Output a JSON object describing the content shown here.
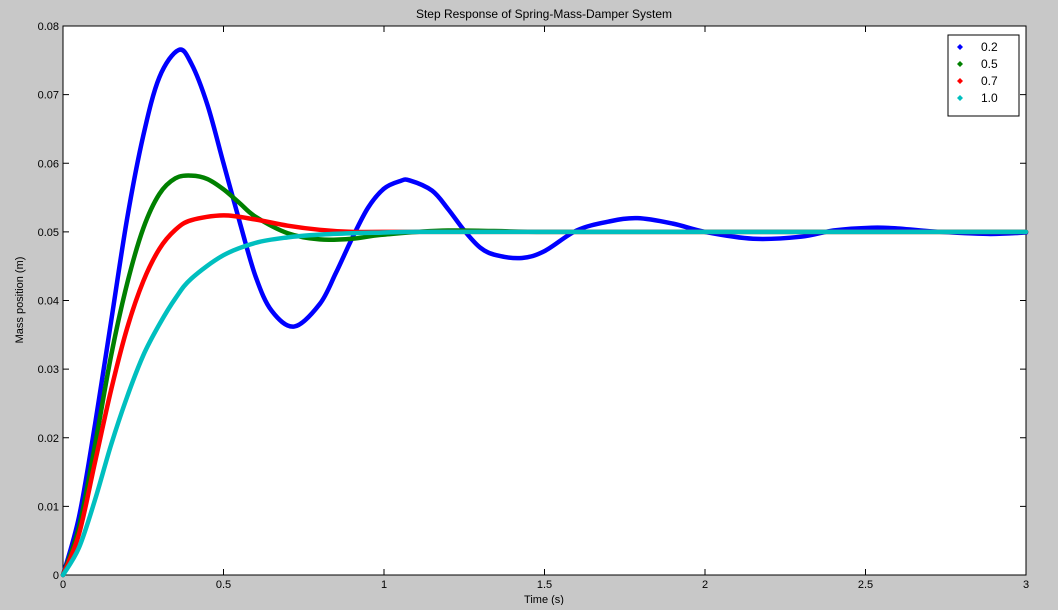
{
  "chart_data": {
    "type": "line",
    "title": "Step Response of Spring-Mass-Damper System",
    "xlabel": "Time (s)",
    "ylabel": "Mass position (m)",
    "xlim": [
      0,
      3
    ],
    "ylim": [
      0,
      0.08
    ],
    "grid": false,
    "legend_position": "top-right",
    "marker": "dot",
    "xticks": [
      0,
      0.5,
      1,
      1.5,
      2,
      2.5,
      3
    ],
    "xtick_labels": [
      "0",
      "0.5",
      "1",
      "1.5",
      "2",
      "2.5",
      "3"
    ],
    "yticks": [
      0,
      0.01,
      0.02,
      0.03,
      0.04,
      0.05,
      0.06,
      0.07,
      0.08
    ],
    "ytick_labels": [
      "0",
      "0.01",
      "0.02",
      "0.03",
      "0.04",
      "0.05",
      "0.06",
      "0.07",
      "0.08"
    ],
    "series": [
      {
        "name": "0.2",
        "color": "#0000ff",
        "x": [
          0,
          0.05,
          0.1,
          0.15,
          0.2,
          0.25,
          0.3,
          0.36,
          0.4,
          0.45,
          0.5,
          0.55,
          0.6,
          0.65,
          0.72,
          0.8,
          0.85,
          0.9,
          0.95,
          1.0,
          1.05,
          1.08,
          1.15,
          1.2,
          1.25,
          1.3,
          1.35,
          1.43,
          1.5,
          1.6,
          1.7,
          1.79,
          1.9,
          2.0,
          2.15,
          2.3,
          2.4,
          2.52,
          2.6,
          2.7,
          2.88,
          3.0
        ],
        "y": [
          0,
          0.0085,
          0.022,
          0.037,
          0.052,
          0.064,
          0.0725,
          0.0765,
          0.0745,
          0.0685,
          0.06,
          0.0515,
          0.0435,
          0.0385,
          0.0362,
          0.0395,
          0.044,
          0.049,
          0.0535,
          0.0563,
          0.0574,
          0.0575,
          0.056,
          0.0533,
          0.0502,
          0.0477,
          0.0466,
          0.0462,
          0.0472,
          0.0502,
          0.0515,
          0.052,
          0.0512,
          0.05,
          0.049,
          0.0493,
          0.0502,
          0.0506,
          0.0505,
          0.0501,
          0.0497,
          0.0499
        ]
      },
      {
        "name": "0.5",
        "color": "#008000",
        "x": [
          0,
          0.05,
          0.1,
          0.15,
          0.2,
          0.25,
          0.3,
          0.35,
          0.4,
          0.45,
          0.5,
          0.55,
          0.6,
          0.7,
          0.8,
          0.9,
          1.0,
          1.2,
          1.5,
          2.0,
          2.5,
          3.0
        ],
        "y": [
          0,
          0.007,
          0.019,
          0.032,
          0.0425,
          0.0505,
          0.0555,
          0.0578,
          0.0582,
          0.0577,
          0.0562,
          0.0542,
          0.0522,
          0.0498,
          0.0489,
          0.049,
          0.0496,
          0.0502,
          0.05,
          0.05,
          0.05,
          0.05
        ]
      },
      {
        "name": "0.7",
        "color": "#ff0000",
        "x": [
          0,
          0.05,
          0.1,
          0.15,
          0.2,
          0.25,
          0.3,
          0.35,
          0.4,
          0.5,
          0.6,
          0.7,
          0.8,
          0.9,
          1.0,
          1.5,
          2.0,
          2.5,
          3.0
        ],
        "y": [
          0,
          0.006,
          0.0165,
          0.027,
          0.036,
          0.0428,
          0.0475,
          0.0503,
          0.0517,
          0.0524,
          0.0518,
          0.0509,
          0.0503,
          0.05,
          0.05,
          0.05,
          0.05,
          0.05,
          0.05
        ]
      },
      {
        "name": "1.0",
        "color": "#00bfbf",
        "x": [
          0,
          0.05,
          0.1,
          0.15,
          0.2,
          0.25,
          0.3,
          0.35,
          0.4,
          0.5,
          0.6,
          0.7,
          0.8,
          0.9,
          1.0,
          1.1,
          1.5,
          2.0,
          2.5,
          3.0
        ],
        "y": [
          0,
          0.004,
          0.011,
          0.019,
          0.026,
          0.032,
          0.0365,
          0.0403,
          0.0432,
          0.0466,
          0.0484,
          0.0492,
          0.0496,
          0.0498,
          0.0499,
          0.05,
          0.05,
          0.05,
          0.05,
          0.05
        ]
      }
    ]
  }
}
